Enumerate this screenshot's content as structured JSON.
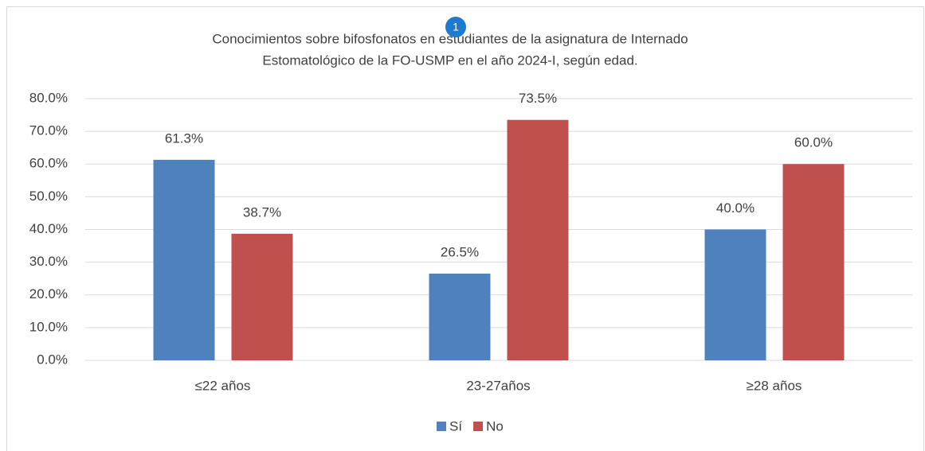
{
  "chart_data": {
    "type": "bar",
    "title": [
      "Conocimientos sobre bifosfonatos en estudiantes de la asignatura de Internado",
      "Estomatológico de la FO-USMP en el año 2024-I, según edad."
    ],
    "annotation": "1",
    "categories": [
      "≤22 años",
      "23-27años",
      "≥28 años"
    ],
    "series": [
      {
        "name": "Sí",
        "color": "#4f81bd",
        "values": [
          61.3,
          26.5,
          40.0
        ],
        "value_labels": [
          "61.3%",
          "26.5%",
          "40.0%"
        ]
      },
      {
        "name": "No",
        "color": "#c0504d",
        "values": [
          38.7,
          73.5,
          60.0
        ],
        "value_labels": [
          "38.7%",
          "73.5%",
          "60.0%"
        ]
      }
    ],
    "ylim": [
      0,
      80
    ],
    "yticks": [
      {
        "value": 0,
        "label": "0.0%"
      },
      {
        "value": 10,
        "label": "10.0%"
      },
      {
        "value": 20,
        "label": "20.0%"
      },
      {
        "value": 30,
        "label": "30.0%"
      },
      {
        "value": 40,
        "label": "40.0%"
      },
      {
        "value": 50,
        "label": "50.0%"
      },
      {
        "value": 60,
        "label": "60.0%"
      },
      {
        "value": 70,
        "label": "70.0%"
      },
      {
        "value": 80,
        "label": "80.0%"
      }
    ],
    "grid": true,
    "legend": "bottom"
  }
}
